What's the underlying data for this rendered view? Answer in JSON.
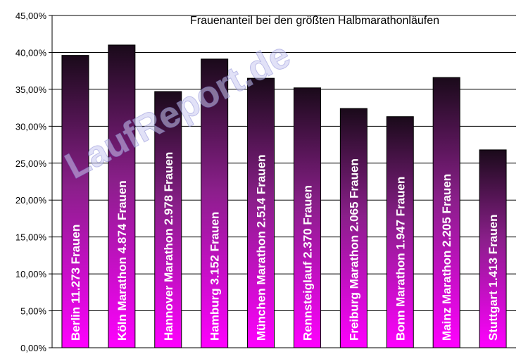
{
  "chart_data": {
    "type": "bar",
    "title": "Frauenanteil bei den größten Halbmarathonläufen",
    "categories": [
      "Berlin",
      "Köln Marathon",
      "Hannover Marathon",
      "Hamburg",
      "München Marathon",
      "Rennsteiglauf",
      "Freiburg Marathon",
      "Bonn Marathon",
      "Mainz Marathon",
      "Stuttgart"
    ],
    "bar_labels": [
      "Berlin  11.273  Frauen",
      "Köln Marathon  4.874  Frauen",
      "Hannover Marathon  2.978  Frauen",
      "Hamburg  3.152  Frauen",
      "München Marathon  2.514  Frauen",
      "Rennsteiglauf  2.370  Frauen",
      "Freiburg Marathon  2.065  Frauen",
      "Bonn Marathon  1.947  Frauen",
      "Mainz Marathon  2.205  Frauen",
      "Stuttgart  1.413  Frauen"
    ],
    "values": [
      39.6,
      41.0,
      34.7,
      39.1,
      36.5,
      35.2,
      32.4,
      31.3,
      36.6,
      26.8
    ],
    "ylim": [
      0,
      45
    ],
    "yticks": [
      "0,00%",
      "5,00%",
      "10,00%",
      "15,00%",
      "20,00%",
      "25,00%",
      "30,00%",
      "35,00%",
      "40,00%",
      "45,00%"
    ],
    "xlabel": "",
    "ylabel": "",
    "grid": true,
    "watermark": "LaufReport.de",
    "colors": {
      "bar_top": "#1a0a1a",
      "bar_mid": "#8a1f8a",
      "bar_bottom": "#ff00ff",
      "grid": "#000000"
    }
  }
}
